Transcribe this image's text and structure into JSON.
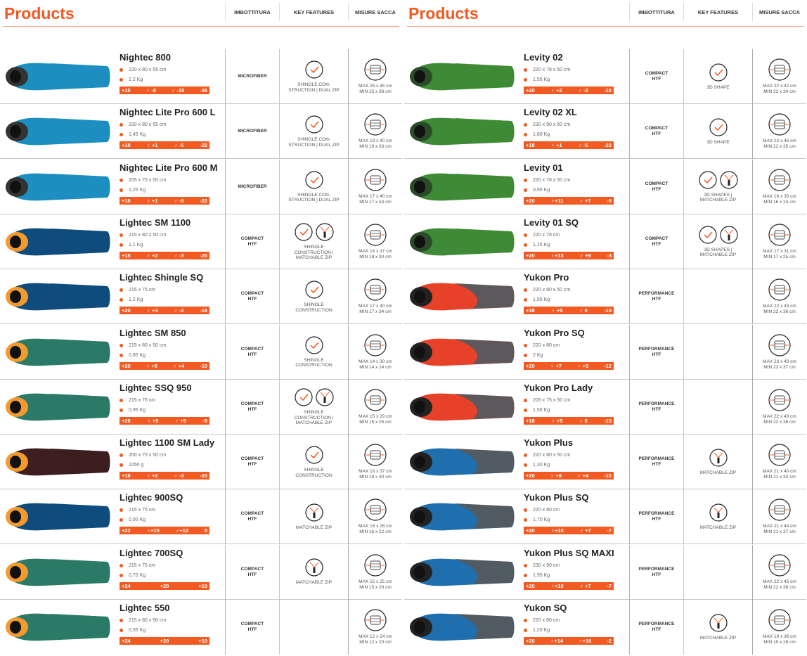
{
  "header": {
    "title": "Products",
    "col_filling": "IMBOTTITURA",
    "col_features": "KEY FEATURES",
    "col_sack": "MISURE SACCA"
  },
  "colors": {
    "accent": "#f15a22"
  },
  "left": [
    {
      "name": "Nightec 800",
      "dims": "220 x 80 x 55 cm",
      "weight": "2,2 Kg",
      "temps": [
        "+15",
        "♀ -8",
        "♂ -15",
        "-36"
      ],
      "filling": [
        "MICROFIBER"
      ],
      "icons": [
        "check-icon"
      ],
      "features": [
        "SHINGLE CON-",
        "STRUCTION | DUAL ZIP"
      ],
      "sack": [
        "MAX 25 x 45 cm",
        "MIN 25 x 38 cm"
      ],
      "bag": [
        "#1c8fc0",
        "#1c8fc0",
        "#333"
      ]
    },
    {
      "name": "Nightec Lite Pro 600 L",
      "dims": "220 x 80 x 55 cm",
      "weight": "1,45 Kg",
      "temps": [
        "+18",
        "♀ +1",
        "♂ -5",
        "-22"
      ],
      "filling": [
        "MICROFIBER"
      ],
      "icons": [
        "check-icon"
      ],
      "features": [
        "SHINGLE CON-",
        "STRUCTION | DUAL ZIP"
      ],
      "sack": [
        "MAX 19 x 40 cm",
        "MIN 19 x 33 cm"
      ],
      "bag": [
        "#1c8fc0",
        "#1c8fc0",
        "#333"
      ]
    },
    {
      "name": "Nightec Lite Pro 600 M",
      "dims": "205 x 75 x 50 cm",
      "weight": "1,25 Kg",
      "temps": [
        "+18",
        "♀ +1",
        "♂ -5",
        "-22"
      ],
      "filling": [
        "MICROFIBER"
      ],
      "icons": [
        "check-icon"
      ],
      "features": [
        "SHINGLE CON-",
        "STRUCTION | DUAL ZIP"
      ],
      "sack": [
        "MAX 17 x 40 cm",
        "MIN 17 x 33 cm"
      ],
      "bag": [
        "#1c8fc0",
        "#1c8fc0",
        "#333"
      ]
    },
    {
      "name": "Lightec SM 1100",
      "dims": "215 x 80 x 50 cm",
      "weight": "1,1 Kg",
      "temps": [
        "+18",
        "♀ +2",
        "♂ -3",
        "-20"
      ],
      "filling": [
        "COMPACT",
        "HTF"
      ],
      "icons": [
        "check-icon",
        "zip-icon"
      ],
      "features": [
        "SHINGLE",
        "CONSTRUCTION |",
        "MATCHABLE ZIP"
      ],
      "sack": [
        "MAX 18 x 37 cm",
        "MIN 18 x 30 cm"
      ],
      "bag": [
        "#0f4c7d",
        "#0f4c7d",
        "#f29a2e"
      ]
    },
    {
      "name": "Lightec Shingle SQ",
      "dims": "215 x 75 cm",
      "weight": "1,2 Kg",
      "temps": [
        "+20",
        "♀ +3",
        "♂ -2",
        "-18"
      ],
      "filling": [
        "COMPACT",
        "HTF"
      ],
      "icons": [
        "check-icon"
      ],
      "features": [
        "SHINGLE",
        "CONSTRUCTION"
      ],
      "sack": [
        "MAX 17 x 40 cm",
        "MIN 17 x 34 cm"
      ],
      "bag": [
        "#0f4c7d",
        "#0f4c7d",
        "#f29a2e"
      ]
    },
    {
      "name": "Lightec SM 850",
      "dims": "215 x 80 x 50 cm",
      "weight": "0,85 Kg",
      "temps": [
        "+20",
        "♀ +8",
        "♂ +4",
        "-10"
      ],
      "filling": [
        "COMPACT",
        "HTF"
      ],
      "icons": [
        "check-icon"
      ],
      "features": [
        "SHINGLE",
        "CONSTRUCTION"
      ],
      "sack": [
        "MAX 14 x 30 cm",
        "MIN 14 x 24 cm"
      ],
      "bag": [
        "#2b7a68",
        "#2b7a68",
        "#f29a2e"
      ]
    },
    {
      "name": "Lightec SSQ 950",
      "dims": "215 x 75 cm",
      "weight": "0,95 Kg",
      "temps": [
        "+20",
        "♀ +9",
        "♂ +5",
        "-9"
      ],
      "filling": [
        "COMPACT",
        "HTF"
      ],
      "icons": [
        "check-icon",
        "zip-icon"
      ],
      "features": [
        "SHINGLE",
        "CONSTRUCTION |",
        "MATCHABLE ZIP"
      ],
      "sack": [
        "MAX 15 x 29 cm",
        "MIN 15 x 25 cm"
      ],
      "bag": [
        "#2b7a68",
        "#2b7a68",
        "#f29a2e"
      ]
    },
    {
      "name": "Lightec 1100 SM Lady",
      "dims": "200 x 75 x 50 cm",
      "weight": "1050 g",
      "temps": [
        "+18",
        "♀ +2",
        "♂ -3",
        "-20"
      ],
      "filling": [
        "COMPACT",
        "HTF"
      ],
      "icons": [
        "check-icon"
      ],
      "features": [
        "SHINGLE",
        "CONSTRUCTION"
      ],
      "sack": [
        "MAX 18 x 37 cm",
        "MIN 18 x 30 cm"
      ],
      "bag": [
        "#3d1f1f",
        "#3d1f1f",
        "#f29a2e"
      ]
    },
    {
      "name": "Lightec 900SQ",
      "dims": "215 x 75 cm",
      "weight": "0,90 Kg",
      "temps": [
        "+22",
        "♀+15",
        "♂+12",
        "0"
      ],
      "filling": [
        "COMPACT",
        "HTF"
      ],
      "icons": [
        "zip-icon"
      ],
      "features": [
        "MATCHABLE ZIP"
      ],
      "sack": [
        "MAX 16 x 28 cm",
        "MIN 16 x 22 cm"
      ],
      "bag": [
        "#0f4c7d",
        "#0f4c7d",
        "#f29a2e"
      ]
    },
    {
      "name": "Lightec 700SQ",
      "dims": "215 x 75 cm",
      "weight": "0,70 Kg",
      "temps": [
        "+24",
        "+20",
        "+10"
      ],
      "filling": [
        "COMPACT",
        "HTF"
      ],
      "icons": [
        "zip-icon"
      ],
      "features": [
        "MATCHABLE ZIP"
      ],
      "sack": [
        "MAX 15 x 25 cm",
        "MIN 15 x 20 cm"
      ],
      "bag": [
        "#2b7a68",
        "#2b7a68",
        "#f29a2e"
      ]
    },
    {
      "name": "Lightec 550",
      "dims": "215 x 80 x 50 cm",
      "weight": "0,55 Kg",
      "temps": [
        "+24",
        "+20",
        "+10"
      ],
      "filling": [
        "COMPACT",
        "HTF"
      ],
      "icons": [],
      "features": [],
      "sack": [
        "MAX 12 x 24 cm",
        "MIN 12 x 20 cm"
      ],
      "bag": [
        "#2b7a68",
        "#2b7a68",
        "#f29a2e"
      ]
    }
  ],
  "right": [
    {
      "name": "Levity 02",
      "dims": "220 x 78 x 50 cm",
      "weight": "1,55 Kg",
      "temps": [
        "+20",
        "♀ +2",
        "♂ -3",
        "-19"
      ],
      "filling": [
        "COMPACT",
        "HTF"
      ],
      "icons": [
        "check-icon"
      ],
      "features": [
        "3D SHAPE"
      ],
      "sack": [
        "MAX 22 x 42 cm",
        "MIN 22 x 34 cm"
      ],
      "bag": [
        "#3f8a36",
        "#3f8a36",
        "#2a4a2a"
      ]
    },
    {
      "name": "Levity 02 XL",
      "dims": "230 x 90 x 60 cm",
      "weight": "1,80 Kg",
      "temps": [
        "+18",
        "♀ +1",
        "♂ -5",
        "-22"
      ],
      "filling": [
        "COMPACT",
        "HTF"
      ],
      "icons": [
        "check-icon"
      ],
      "features": [
        "3D SHAPE"
      ],
      "sack": [
        "MAX 22 x 45 cm",
        "MIN 22 x 35 cm"
      ],
      "bag": [
        "#3f8a36",
        "#3f8a36",
        "#2a4a2a"
      ]
    },
    {
      "name": "Levity 01",
      "dims": "220 x 78 x 50 cm",
      "weight": "0,95 Kg",
      "temps": [
        "+20",
        "♀+11",
        "♂ +7",
        "-5"
      ],
      "filling": [
        "COMPACT",
        "HTF"
      ],
      "icons": [
        "check-icon",
        "zip-icon"
      ],
      "features": [
        "3D SHAPES |",
        "MATCHABLE ZIP"
      ],
      "sack": [
        "MAX 16 x 30 cm",
        "MIN 16 x 24 cm"
      ],
      "bag": [
        "#3f8a36",
        "#3f8a36",
        "#2a4a2a"
      ]
    },
    {
      "name": "Levity 01 SQ",
      "dims": "220 x 78 cm",
      "weight": "1,15 Kg",
      "temps": [
        "+20",
        "♀+13",
        "♂ +9",
        "-3"
      ],
      "filling": [
        "COMPACT",
        "HTF"
      ],
      "icons": [
        "check-icon",
        "zip-icon"
      ],
      "features": [
        "3D SHAPES |",
        "MATCHABLE ZIP"
      ],
      "sack": [
        "MAX 17 x 31 cm",
        "MIN 17 x 25 cm"
      ],
      "bag": [
        "#3f8a36",
        "#3f8a36",
        "#2a4a2a"
      ]
    },
    {
      "name": "Yukon Pro",
      "dims": "220 x 80 x 50 cm",
      "weight": "1,55 Kg",
      "temps": [
        "+18",
        "♀ +5",
        "♂ 0",
        "-15"
      ],
      "filling": [
        "PERFORMANCE",
        "HTF"
      ],
      "icons": [],
      "features": [],
      "sack": [
        "MAX 22 x 43 cm",
        "MIN 22 x 36 cm"
      ],
      "bag": [
        "#e8412a",
        "#555a5e",
        "#222"
      ]
    },
    {
      "name": "Yukon Pro SQ",
      "dims": "220 x 80 cm",
      "weight": "2 Kg",
      "temps": [
        "+20",
        "♀ +7",
        "♂ +3",
        "-12"
      ],
      "filling": [
        "PERFORMANCE",
        "HTF"
      ],
      "icons": [],
      "features": [],
      "sack": [
        "MAX 23 x 43 cm",
        "MIN 23 x 37 cm"
      ],
      "bag": [
        "#e8412a",
        "#555a5e",
        "#222"
      ]
    },
    {
      "name": "Yukon Pro Lady",
      "dims": "205 x 75 x 50 cm",
      "weight": "1,50 Kg",
      "temps": [
        "+18",
        "♀ +5",
        "♂ 0",
        "-15"
      ],
      "filling": [
        "PERFORMANCE",
        "HTF"
      ],
      "icons": [],
      "features": [],
      "sack": [
        "MAX 22 x 43 cm",
        "MIN 22 x 36 cm"
      ],
      "bag": [
        "#e8412a",
        "#555a5e",
        "#222"
      ]
    },
    {
      "name": "Yukon Plus",
      "dims": "220 x 80 x 50 cm",
      "weight": "1,30 Kg",
      "temps": [
        "+20",
        "♀ +8",
        "♂ +4",
        "-10"
      ],
      "filling": [
        "PERFORMANCE",
        "HTF"
      ],
      "icons": [
        "zip-icon"
      ],
      "features": [
        "MATCHABLE ZIP"
      ],
      "sack": [
        "MAX 21 x 40 cm",
        "MIN 21 x 33 cm"
      ],
      "bag": [
        "#1f6fae",
        "#555a5e",
        "#222"
      ]
    },
    {
      "name": "Yukon Plus SQ",
      "dims": "220 x 80 cm",
      "weight": "1,70 Kg",
      "temps": [
        "+20",
        "♀+10",
        "♂ +7",
        "-7"
      ],
      "filling": [
        "PERFORMANCE",
        "HTF"
      ],
      "icons": [
        "zip-icon"
      ],
      "features": [
        "MATCHABLE ZIP"
      ],
      "sack": [
        "MAX 21 x 44 cm",
        "MIN 21 x 37 cm"
      ],
      "bag": [
        "#1f6fae",
        "#555a5e",
        "#222"
      ]
    },
    {
      "name": "Yukon Plus SQ MAXI",
      "dims": "230 x 90 cm",
      "weight": "1,95 Kg",
      "temps": [
        "+20",
        "♀+10",
        "♂ +7",
        "-7"
      ],
      "filling": [
        "PERFORMANCE",
        "HTF"
      ],
      "icons": [],
      "features": [],
      "sack": [
        "MAX 22 x 45 cm",
        "MIN 22 x 38 cm"
      ],
      "bag": [
        "#1f6fae",
        "#555a5e",
        "#222"
      ]
    },
    {
      "name": "Yukon SQ",
      "dims": "220 x 80 cm",
      "weight": "1,20 Kg",
      "temps": [
        "+20",
        "♀+14",
        "♂+10",
        "-2"
      ],
      "filling": [
        "PERFORMANCE",
        "HTF"
      ],
      "icons": [
        "zip-icon"
      ],
      "features": [
        "MATCHABLE ZIP"
      ],
      "sack": [
        "MAX 19 x 36 cm",
        "MIN 19 x 26 cm"
      ],
      "bag": [
        "#1f6fae",
        "#555a5e",
        "#222"
      ]
    }
  ]
}
